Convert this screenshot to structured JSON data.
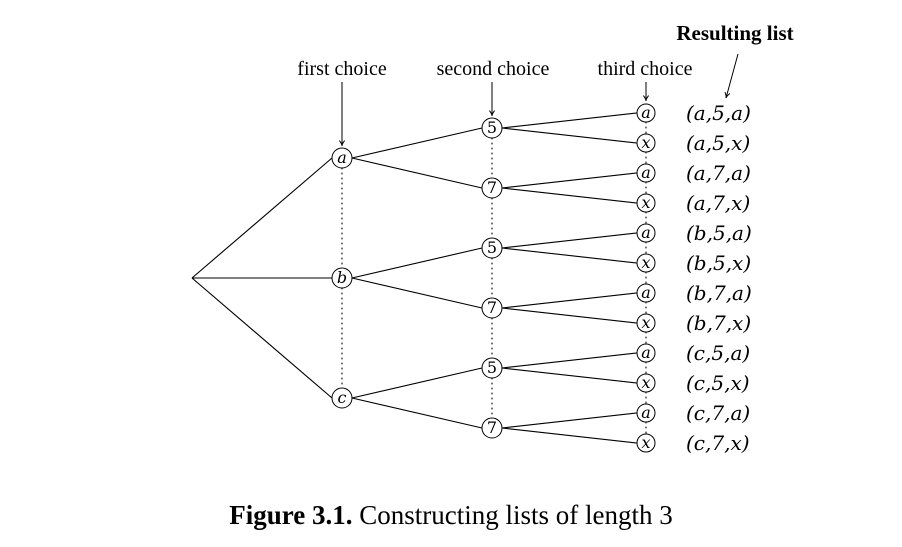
{
  "headers": {
    "first": "first choice",
    "second": "second choice",
    "third": "third choice",
    "result": "Resulting list"
  },
  "first_choices": [
    "a",
    "b",
    "c"
  ],
  "second_choices": [
    "5",
    "7"
  ],
  "third_choices": [
    "a",
    "x"
  ],
  "results": [
    "(a,5,a)",
    "(a,5,x)",
    "(a,7,a)",
    "(a,7,x)",
    "(b,5,a)",
    "(b,5,x)",
    "(b,7,a)",
    "(b,7,x)",
    "(c,5,a)",
    "(c,5,x)",
    "(c,7,a)",
    "(c,7,x)"
  ],
  "caption": {
    "number": "Figure 3.1.",
    "text": "Constructing lists of length 3"
  }
}
